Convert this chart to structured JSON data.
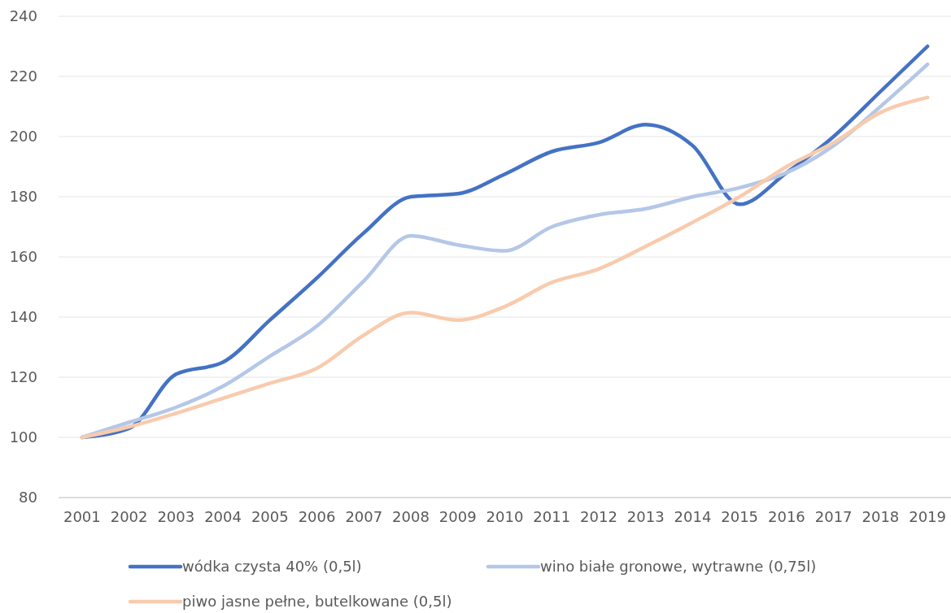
{
  "chart_data": {
    "type": "line",
    "categories": [
      "2001",
      "2002",
      "2003",
      "2004",
      "2005",
      "2006",
      "2007",
      "2008",
      "2009",
      "2010",
      "2011",
      "2012",
      "2013",
      "2014",
      "2015",
      "2016",
      "2017",
      "2018",
      "2019"
    ],
    "series": [
      {
        "name": "wódka czysta 40% (0,5l)",
        "color": "#4472c4",
        "values": [
          100,
          103,
          121,
          125,
          139,
          153,
          168,
          180,
          181,
          187.5,
          195,
          198,
          204,
          197,
          177.5,
          188,
          200,
          215,
          230
        ]
      },
      {
        "name": "wino białe gronowe, wytrawne (0,75l)",
        "color": "#b4c7e7",
        "values": [
          100,
          105,
          110,
          117,
          127,
          137,
          152,
          167,
          164,
          162,
          170,
          174,
          176,
          180,
          183,
          188,
          197,
          210,
          224
        ]
      },
      {
        "name": "piwo jasne pełne, butelkowane (0,5l)",
        "color": "#f8cbad",
        "values": [
          100,
          103.5,
          108,
          113,
          118,
          123,
          134,
          141.5,
          139,
          143.5,
          151.5,
          156,
          163.5,
          171.5,
          180,
          190,
          198,
          208,
          213
        ]
      }
    ],
    "ylim": [
      80,
      240
    ],
    "yticks": [
      80,
      100,
      120,
      140,
      160,
      180,
      200,
      220,
      240
    ],
    "grid": "y",
    "legend": "bottom",
    "line_style": "solid",
    "marker": "none"
  }
}
